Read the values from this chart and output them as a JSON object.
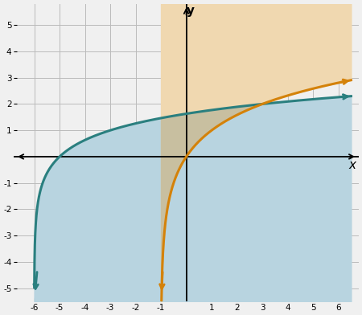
{
  "xlim": [
    -6.8,
    6.8
  ],
  "ylim": [
    -5.5,
    5.8
  ],
  "xticks": [
    -6,
    -5,
    -4,
    -3,
    -2,
    -1,
    1,
    2,
    3,
    4,
    5,
    6
  ],
  "yticks": [
    -5,
    -4,
    -3,
    -2,
    -1,
    1,
    2,
    3,
    4,
    5
  ],
  "log3_color": "#2a7f7f",
  "log2_color": "#d4820a",
  "shade_blue": "#b8d4e0",
  "shade_orange": "#f0d8b0",
  "shade_overlap": "#c8bfa0",
  "grid_color": "#bbbbbb",
  "bg_color": "#f0f0f0",
  "figsize": [
    4.5,
    3.92
  ],
  "dpi": 100
}
